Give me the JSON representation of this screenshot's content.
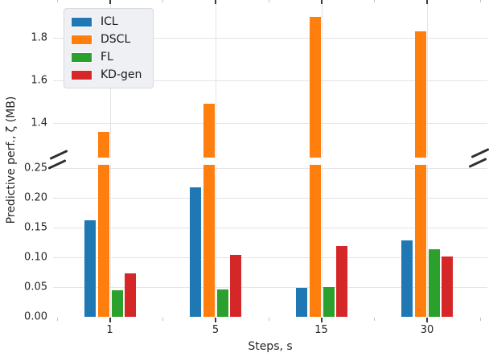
{
  "chart_data": {
    "type": "bar",
    "title": "",
    "xlabel": "Steps, s",
    "ylabel": "Predictive perf., ζ (MB)",
    "categories": [
      "1",
      "5",
      "15",
      "30"
    ],
    "series": [
      {
        "name": "ICL",
        "color": "#1f77b4",
        "values": [
          0.162,
          0.218,
          0.049,
          0.128
        ]
      },
      {
        "name": "DSCL",
        "color": "#ff7f0e",
        "values": [
          1.36,
          1.49,
          1.9,
          1.83
        ]
      },
      {
        "name": "FL",
        "color": "#2ca02c",
        "values": [
          0.044,
          0.046,
          0.05,
          0.113
        ]
      },
      {
        "name": "KD-gen",
        "color": "#d62728",
        "values": [
          0.073,
          0.104,
          0.119,
          0.101
        ]
      }
    ],
    "broken_y_axis": {
      "lower": {
        "ylim": [
          0,
          0.25
        ],
        "tick_labels": [
          "0.00",
          "0.05",
          "0.10",
          "0.15",
          "0.20",
          "0.25"
        ]
      },
      "upper": {
        "ylim": [
          1.24,
          1.97
        ],
        "tick_labels": [
          "1.4",
          "1.6",
          "1.8"
        ]
      }
    },
    "grid": true,
    "legend_position": "upper-left",
    "style": {
      "grid_color": "#e3e3e9",
      "tick_color": "#3b3b3b",
      "minor_tick_color": "#c4c4c4",
      "text_color": "#262626",
      "legend_bg": "#eff0f4",
      "background": "#ffffff"
    }
  }
}
